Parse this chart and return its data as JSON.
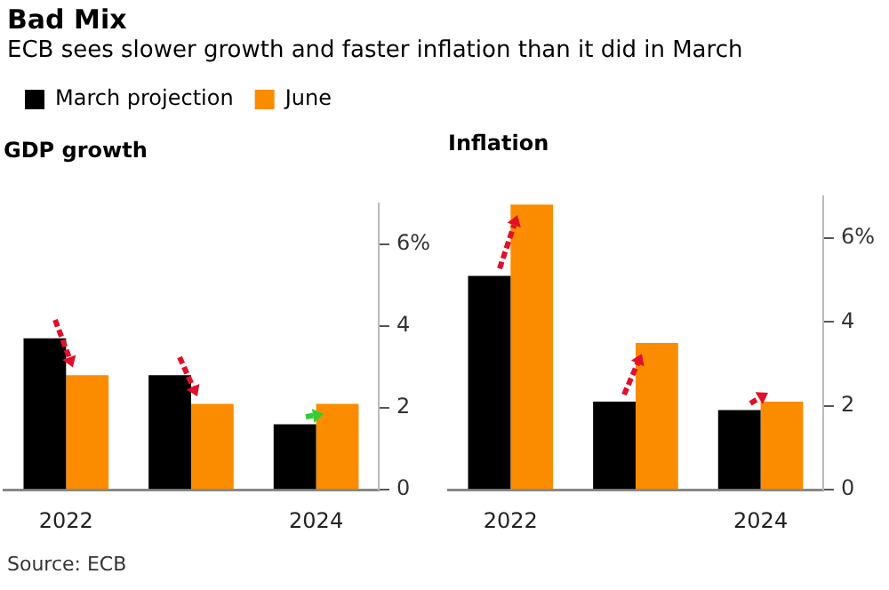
{
  "chart_data": [
    {
      "type": "other",
      "title": "Bad Mix",
      "subtitle": "ECB sees slower growth and faster inflation than it did in March",
      "annotations": [
        "Source: ECB"
      ]
    },
    {
      "type": "bar",
      "title": "GDP growth",
      "categories": [
        "2022",
        null,
        "2024"
      ],
      "series": [
        {
          "name": "March projection",
          "color": "#000000",
          "values": [
            3.7,
            2.8,
            1.6
          ]
        },
        {
          "name": "June",
          "color": "#fb8c00",
          "values": [
            2.8,
            2.1,
            2.1
          ]
        }
      ],
      "ylim": [
        0,
        7
      ],
      "yticks": [
        0,
        2,
        4,
        {
          "value": 6,
          "label": "6%"
        }
      ],
      "grid": false,
      "legend": "top left"
    },
    {
      "type": "bar",
      "title": "Inflation",
      "categories": [
        "2022",
        null,
        "2024"
      ],
      "series": [
        {
          "color": "#000000",
          "values": [
            5.1,
            2.1,
            1.9
          ]
        },
        {
          "color": "#fb8c00",
          "values": [
            6.8,
            3.5,
            2.1
          ]
        }
      ],
      "ylim": [
        0,
        7
      ],
      "yticks": [
        0,
        2,
        4,
        {
          "value": 6,
          "label": "6%"
        }
      ],
      "grid": false
    }
  ]
}
